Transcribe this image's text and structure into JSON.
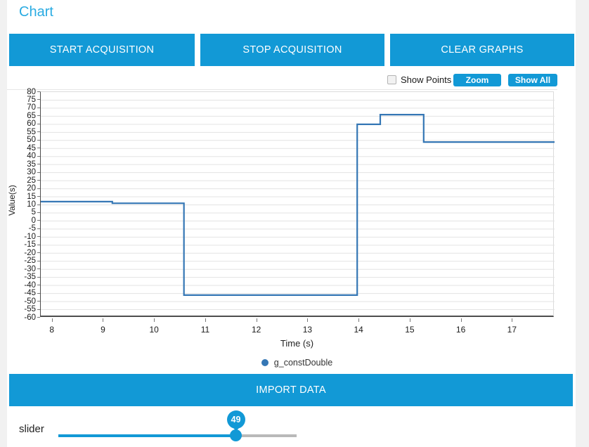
{
  "page": {
    "title": "Chart"
  },
  "header": {
    "buttons": [
      {
        "label": "START ACQUISITION"
      },
      {
        "label": "STOP ACQUISITION"
      },
      {
        "label": "CLEAR GRAPHS"
      }
    ]
  },
  "chart_controls": {
    "show_points_label": "Show Points",
    "show_points_checked": false,
    "zoom_label": "Zoom",
    "show_all_label": "Show All"
  },
  "chart_data": {
    "type": "line",
    "mode": "step-after",
    "title": "",
    "xlabel": "Time (s)",
    "ylabel": "Value(s)",
    "xlim": [
      7.77,
      17.82
    ],
    "ylim": [
      -60,
      80
    ],
    "x_ticks": [
      8,
      9,
      10,
      11,
      12,
      13,
      14,
      15,
      16,
      17
    ],
    "y_ticks": [
      80,
      75,
      70,
      65,
      60,
      55,
      50,
      45,
      40,
      35,
      30,
      25,
      20,
      15,
      10,
      5,
      0,
      -5,
      -10,
      -15,
      -20,
      -25,
      -30,
      -35,
      -40,
      -45,
      -50,
      -55,
      -60
    ],
    "grid": "horizontal",
    "legend": {
      "position": "bottom",
      "entries": [
        {
          "label": "g_constDouble",
          "color": "#3577b5"
        }
      ]
    },
    "series": [
      {
        "name": "g_constDouble",
        "color": "#3577b5",
        "points": [
          [
            7.77,
            12
          ],
          [
            9.17,
            11
          ],
          [
            10.57,
            -46
          ],
          [
            13.96,
            60
          ],
          [
            14.41,
            66
          ],
          [
            15.26,
            49
          ],
          [
            17.82,
            49
          ]
        ]
      }
    ]
  },
  "footer": {
    "import_label": "IMPORT DATA"
  },
  "slider": {
    "label": "slider",
    "value": "49"
  },
  "colors": {
    "accent": "#1299d6",
    "title_blue": "#29abe2",
    "line_blue": "#3577b5",
    "grid_gray": "#e3e3e3"
  }
}
